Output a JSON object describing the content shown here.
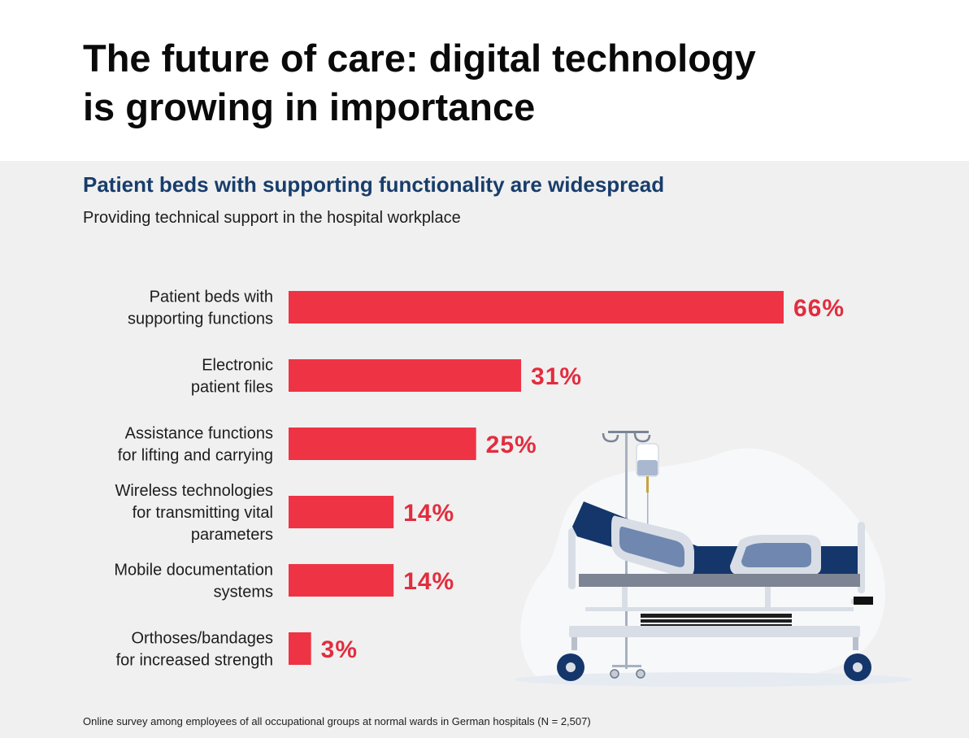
{
  "header": {
    "title_lines": [
      "The future of care: digital technology",
      "is growing in importance"
    ]
  },
  "subtitle": "Patient beds with supporting functionality are widespread",
  "description": "Providing technical support in the hospital workplace",
  "footnote": "Online survey among employees of all occupational groups at normal wards in German hospitals (N = 2,507)",
  "colors": {
    "bar": "#ee3344",
    "value_label": "#e22d3e",
    "subtitle": "#183d6b"
  },
  "illustration": {
    "icon": "hospital-bed-icon"
  },
  "chart_data": {
    "type": "bar",
    "orientation": "horizontal",
    "categories": [
      [
        "Patient beds with",
        "supporting functions"
      ],
      [
        "Electronic",
        "patient files"
      ],
      [
        "Assistance functions",
        "for lifting and carrying"
      ],
      [
        "Wireless technologies",
        "for transmitting vital",
        "parameters"
      ],
      [
        "Mobile documentation",
        "systems"
      ],
      [
        "Orthoses/bandages",
        "for increased strength"
      ]
    ],
    "values": [
      66,
      31,
      25,
      14,
      14,
      3
    ],
    "value_labels": [
      "66%",
      "31%",
      "25%",
      "14%",
      "14%",
      "3%"
    ],
    "unit": "%",
    "xlim": [
      0,
      66
    ],
    "grid": false,
    "legend": "none"
  }
}
